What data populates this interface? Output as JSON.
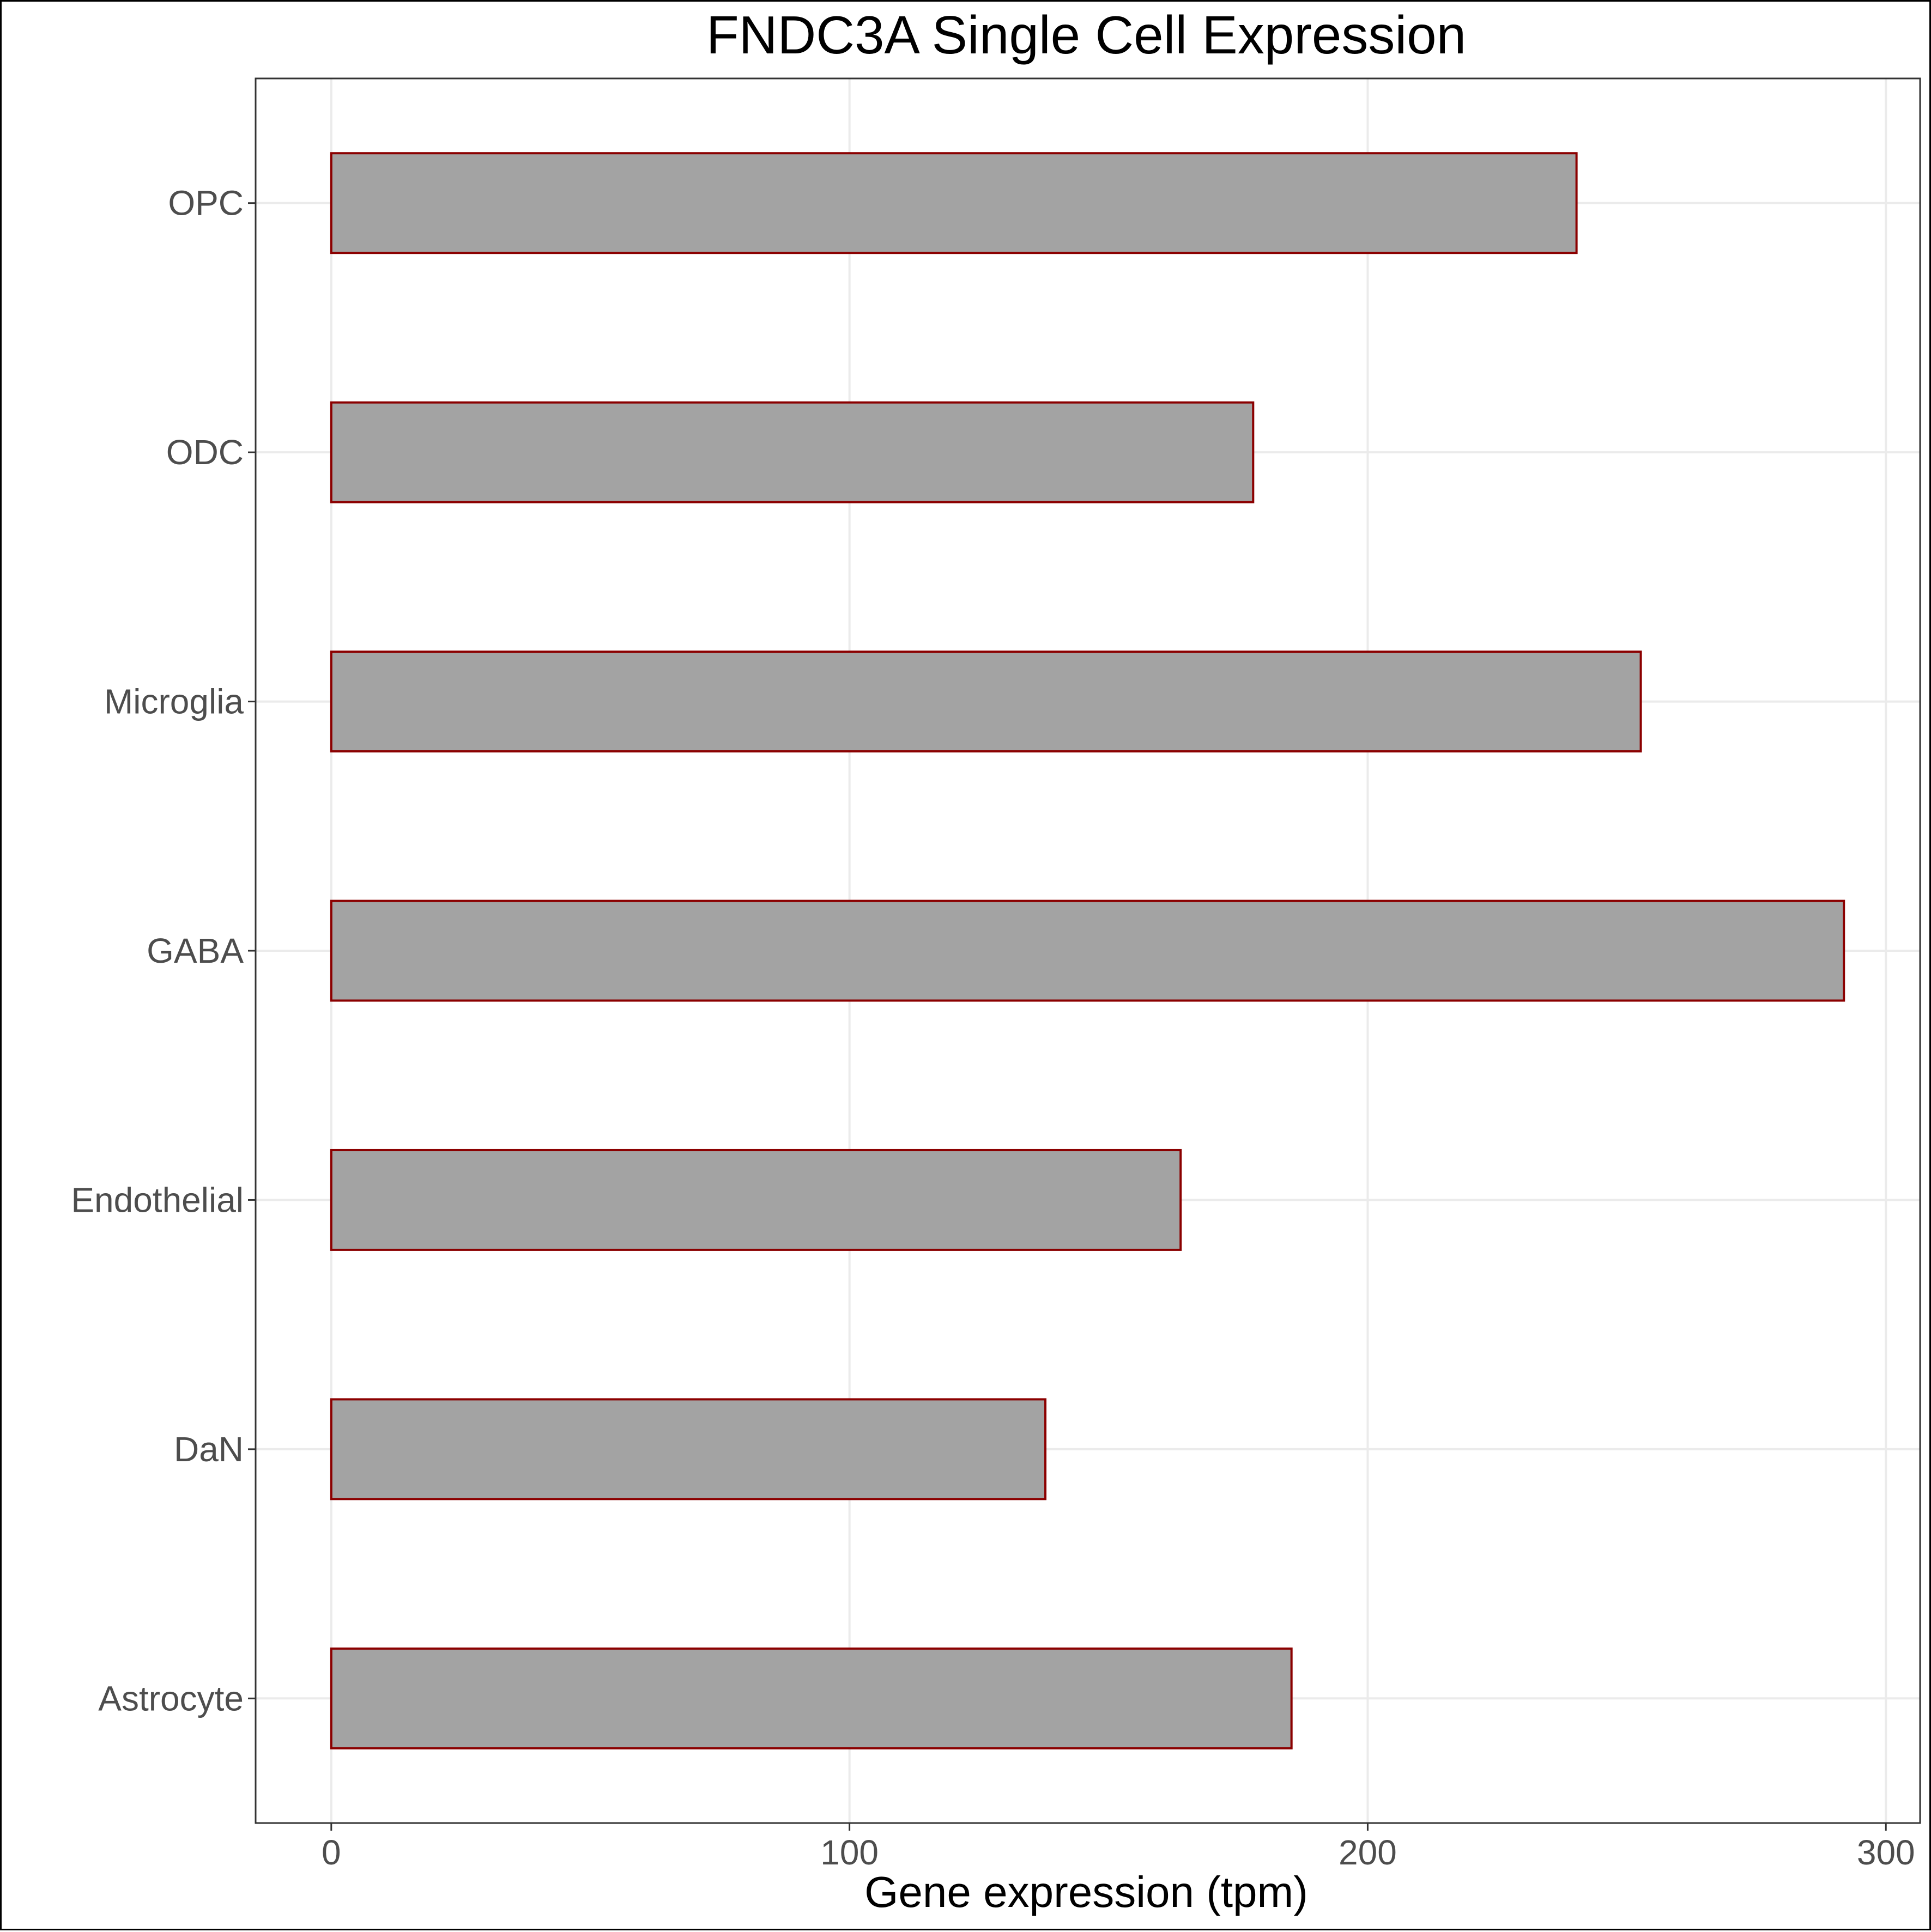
{
  "chart_data": {
    "type": "bar",
    "orientation": "horizontal",
    "title": "FNDC3A Single Cell Expression",
    "xlabel": "Gene expression (tpm)",
    "ylabel": "",
    "categories": [
      "Astrocyte",
      "DaN",
      "Endothelial",
      "GABA",
      "Microglia",
      "ODC",
      "OPC"
    ],
    "values": [
      185.3,
      137.8,
      163.9,
      291.9,
      252.7,
      177.9,
      240.3
    ],
    "xlim": [
      -14.6,
      306.6
    ],
    "xticks": [
      0,
      100,
      200,
      300
    ],
    "grid": true,
    "legend": "none",
    "colors": {
      "bar_fill": "#a3a3a3",
      "bar_stroke": "#8b0000",
      "grid": "#ebebeb",
      "panel_border": "#333333",
      "tick_text": "#4d4d4d"
    }
  }
}
